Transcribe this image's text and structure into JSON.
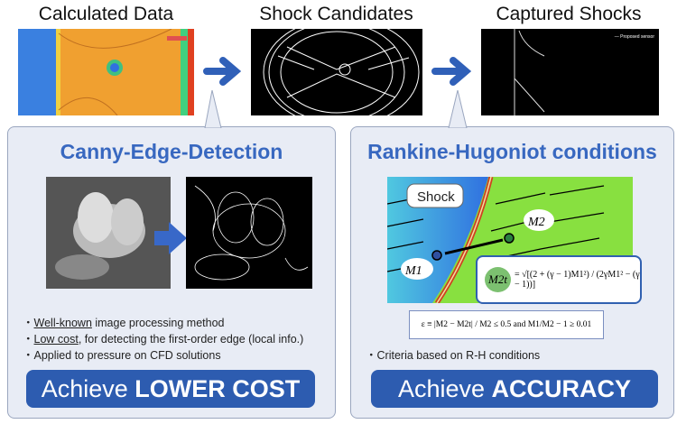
{
  "top": {
    "titles": [
      "Calculated Data",
      "Shock Candidates",
      "Captured Shocks"
    ],
    "legend_text": "— Proposed sensor"
  },
  "left": {
    "title": "Canny-Edge-Detection",
    "bullets": [
      {
        "u": "Well-known",
        "rest": " image processing method"
      },
      {
        "u": "Low cost",
        "rest": ", for detecting the first-order edge (local info.)"
      },
      {
        "u": "",
        "rest": "Applied to pressure on CFD solutions"
      }
    ],
    "button": {
      "pre": "Achieve ",
      "bold": "LOWER COST"
    }
  },
  "right": {
    "title": "Rankine-Hugoniot conditions",
    "shock_label": "Shock",
    "m1": "M1",
    "m2": "M2",
    "m2t": "M2t",
    "formula": "= √[(2 + (γ − 1)M1²) / (2γM1² − (γ − 1))]",
    "criteria_formula": "ε ≡ |M2 − M2t| / M2 ≤ 0.5  and  M1/M2 − 1 ≥ 0.01",
    "bullet": "Criteria based on R-H conditions",
    "button": {
      "pre": "Achieve ",
      "bold": "ACCURACY"
    }
  },
  "colors": {
    "accent": "#3868c0",
    "button": "#2d5cb0",
    "panel": "#e8ecf5"
  }
}
